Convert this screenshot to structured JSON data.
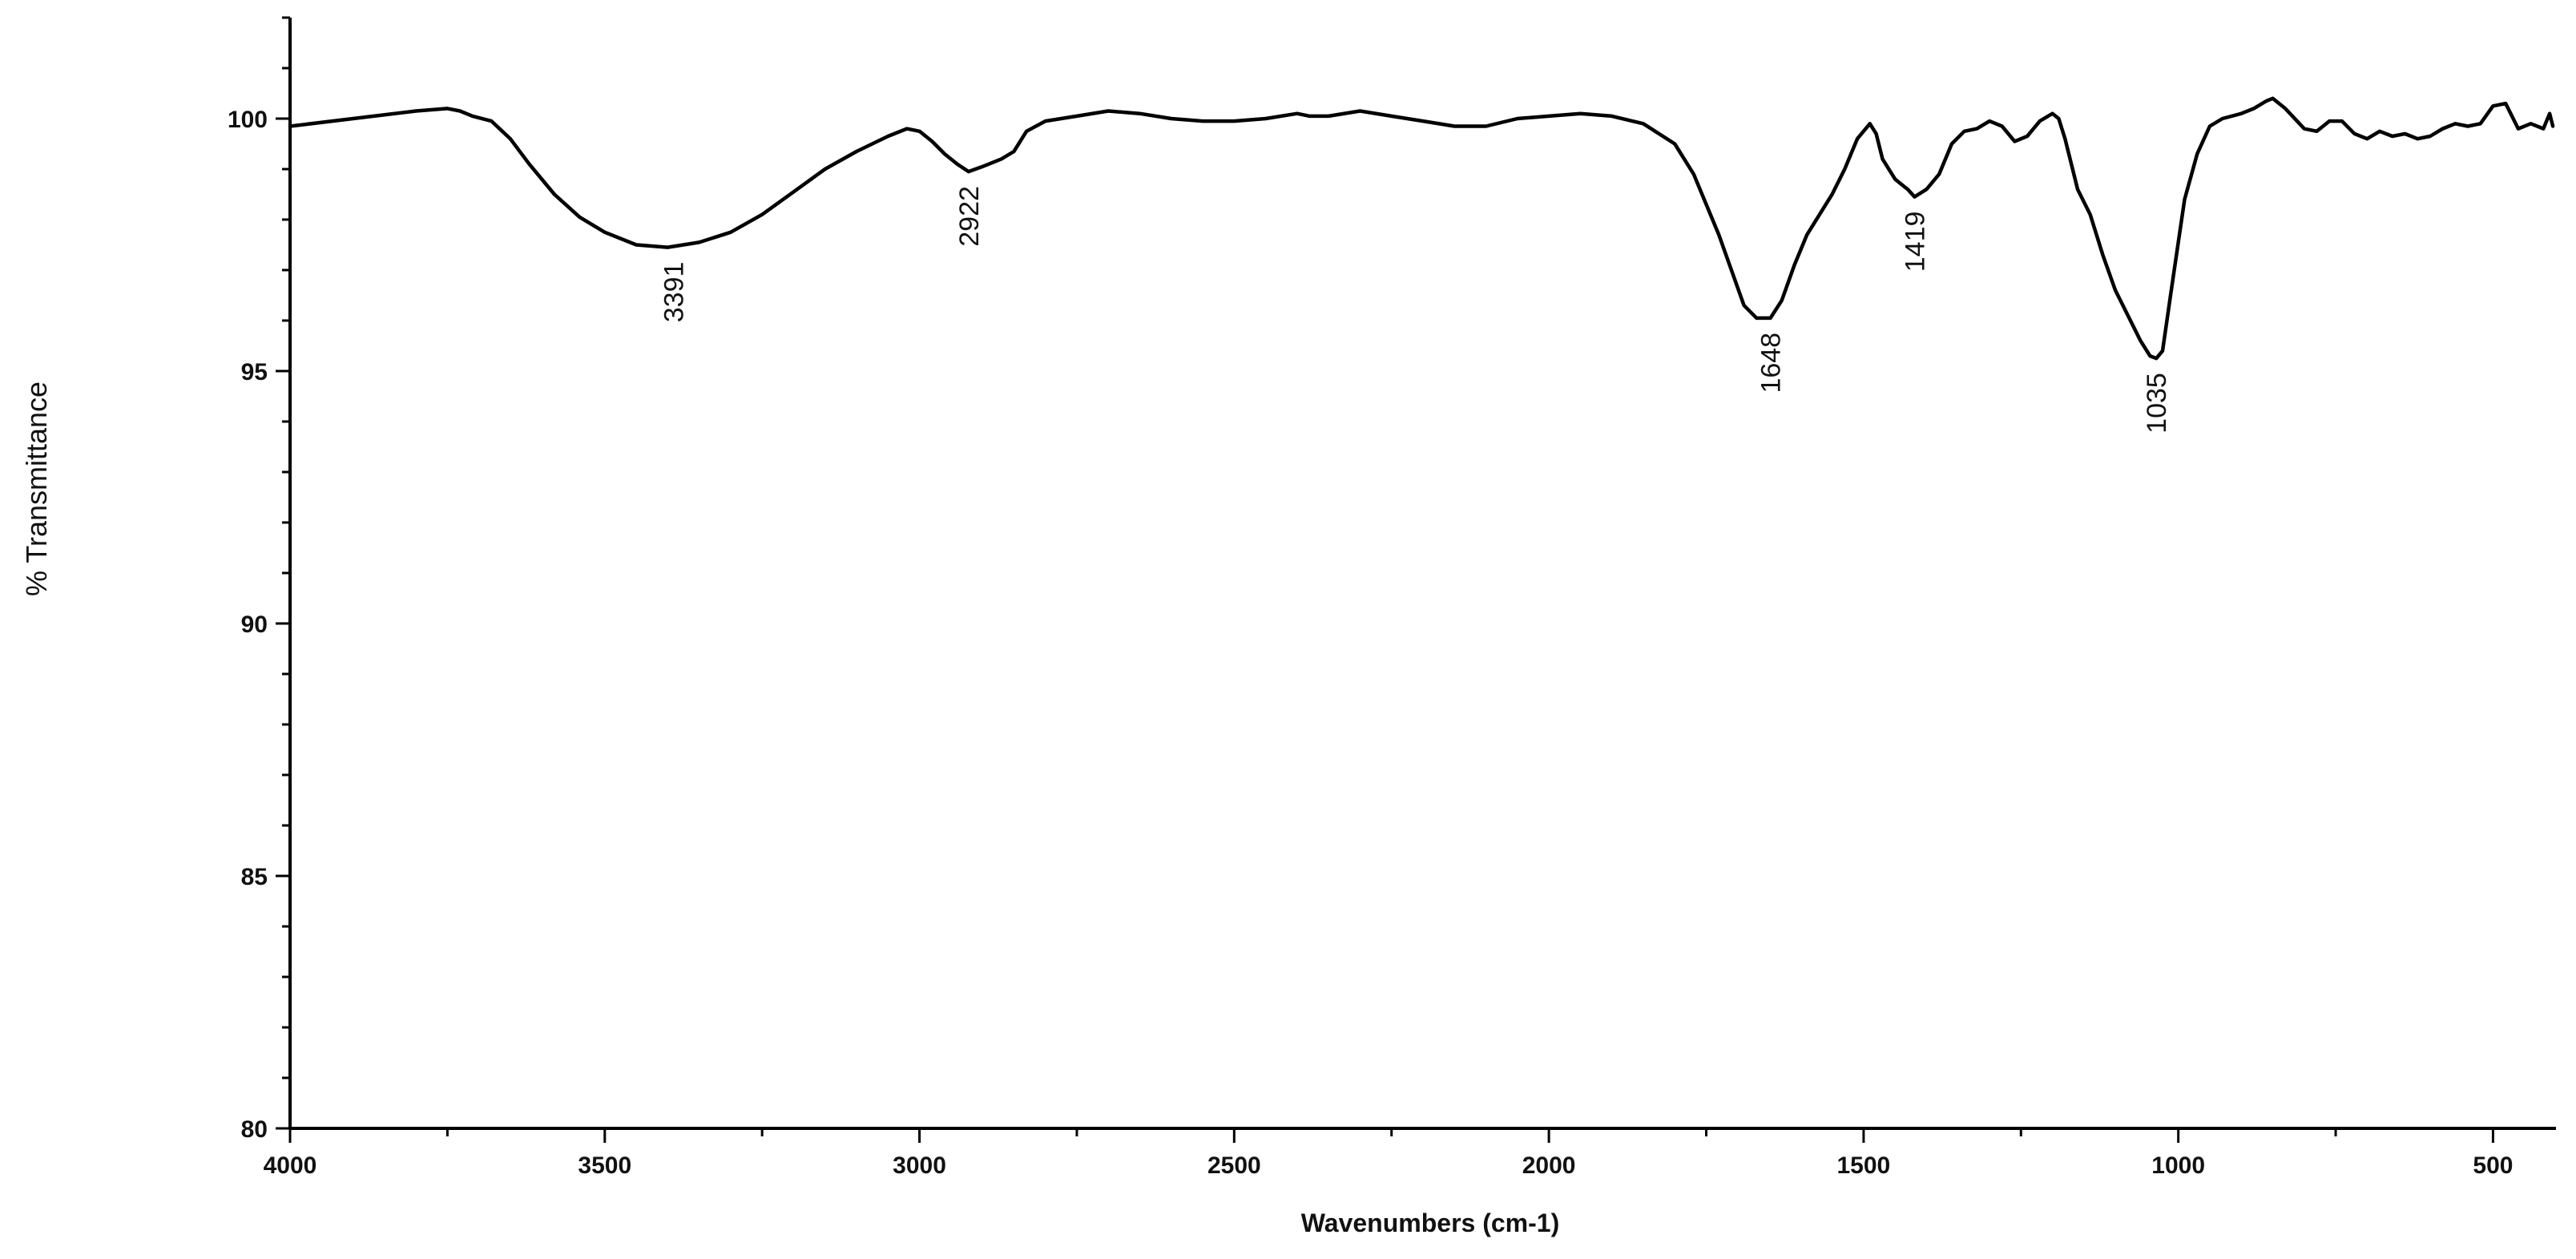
{
  "chart_data": {
    "type": "line",
    "title": "",
    "xlabel": "Wavenumbers (cm-1)",
    "ylabel": "% Transmittance",
    "xlim": [
      4000,
      400
    ],
    "ylim": [
      80,
      102
    ],
    "x_reversed": true,
    "xticks": [
      4000,
      3500,
      3000,
      2500,
      2000,
      1500,
      1000,
      500
    ],
    "yticks": [
      80,
      85,
      90,
      95,
      100
    ],
    "grid": false,
    "legend": "none",
    "line_color": "#000000",
    "series": [
      {
        "x": [
          4000,
          3900,
          3800,
          3750,
          3730,
          3710,
          3680,
          3650,
          3620,
          3580,
          3540,
          3500,
          3450,
          3400,
          3350,
          3300,
          3250,
          3200,
          3150,
          3100,
          3050,
          3020,
          3000,
          2980,
          2960,
          2940,
          2922,
          2900,
          2870,
          2850,
          2830,
          2800,
          2750,
          2700,
          2650,
          2600,
          2550,
          2500,
          2450,
          2400,
          2380,
          2350,
          2300,
          2250,
          2200,
          2150,
          2100,
          2050,
          2000,
          1950,
          1900,
          1850,
          1800,
          1770,
          1750,
          1730,
          1710,
          1690,
          1670,
          1648,
          1630,
          1610,
          1590,
          1570,
          1550,
          1530,
          1510,
          1490,
          1480,
          1470,
          1450,
          1430,
          1419,
          1400,
          1380,
          1360,
          1340,
          1320,
          1300,
          1280,
          1260,
          1240,
          1220,
          1200,
          1190,
          1180,
          1160,
          1140,
          1120,
          1100,
          1080,
          1060,
          1045,
          1035,
          1025,
          1010,
          990,
          970,
          950,
          930,
          900,
          880,
          860,
          850,
          830,
          800,
          780,
          760,
          740,
          720,
          700,
          680,
          660,
          640,
          620,
          600,
          580,
          560,
          540,
          520,
          500,
          480,
          460,
          440,
          420,
          410,
          405
        ],
        "y": [
          99.85,
          100.0,
          100.15,
          100.2,
          100.15,
          100.05,
          99.95,
          99.6,
          99.1,
          98.5,
          98.05,
          97.75,
          97.5,
          97.45,
          97.55,
          97.75,
          98.1,
          98.55,
          99.0,
          99.35,
          99.65,
          99.8,
          99.75,
          99.55,
          99.3,
          99.1,
          98.95,
          99.05,
          99.2,
          99.35,
          99.75,
          99.95,
          100.05,
          100.15,
          100.1,
          100.0,
          99.95,
          99.95,
          100.0,
          100.1,
          100.05,
          100.05,
          100.15,
          100.05,
          99.95,
          99.85,
          99.85,
          100.0,
          100.05,
          100.1,
          100.05,
          99.9,
          99.5,
          98.9,
          98.3,
          97.7,
          97.0,
          96.3,
          96.05,
          96.05,
          96.4,
          97.1,
          97.7,
          98.1,
          98.5,
          99.0,
          99.6,
          99.9,
          99.7,
          99.2,
          98.8,
          98.6,
          98.45,
          98.6,
          98.9,
          99.5,
          99.75,
          99.8,
          99.95,
          99.85,
          99.55,
          99.65,
          99.95,
          100.1,
          100.0,
          99.6,
          98.6,
          98.1,
          97.3,
          96.6,
          96.1,
          95.6,
          95.3,
          95.25,
          95.4,
          96.7,
          98.4,
          99.3,
          99.85,
          100.0,
          100.1,
          100.2,
          100.35,
          100.4,
          100.2,
          99.8,
          99.75,
          99.95,
          99.95,
          99.7,
          99.6,
          99.75,
          99.65,
          99.7,
          99.6,
          99.65,
          99.8,
          99.9,
          99.85,
          99.9,
          100.25,
          100.3,
          99.8,
          99.9,
          99.8,
          100.1,
          99.85
        ]
      }
    ],
    "annotations": [
      {
        "text": "3391",
        "x": 3391,
        "y": 97.45
      },
      {
        "text": "2922",
        "x": 2922,
        "y": 98.95
      },
      {
        "text": "1648",
        "x": 1648,
        "y": 96.05
      },
      {
        "text": "1419",
        "x": 1419,
        "y": 98.45
      },
      {
        "text": "1035",
        "x": 1035,
        "y": 95.25
      }
    ]
  }
}
